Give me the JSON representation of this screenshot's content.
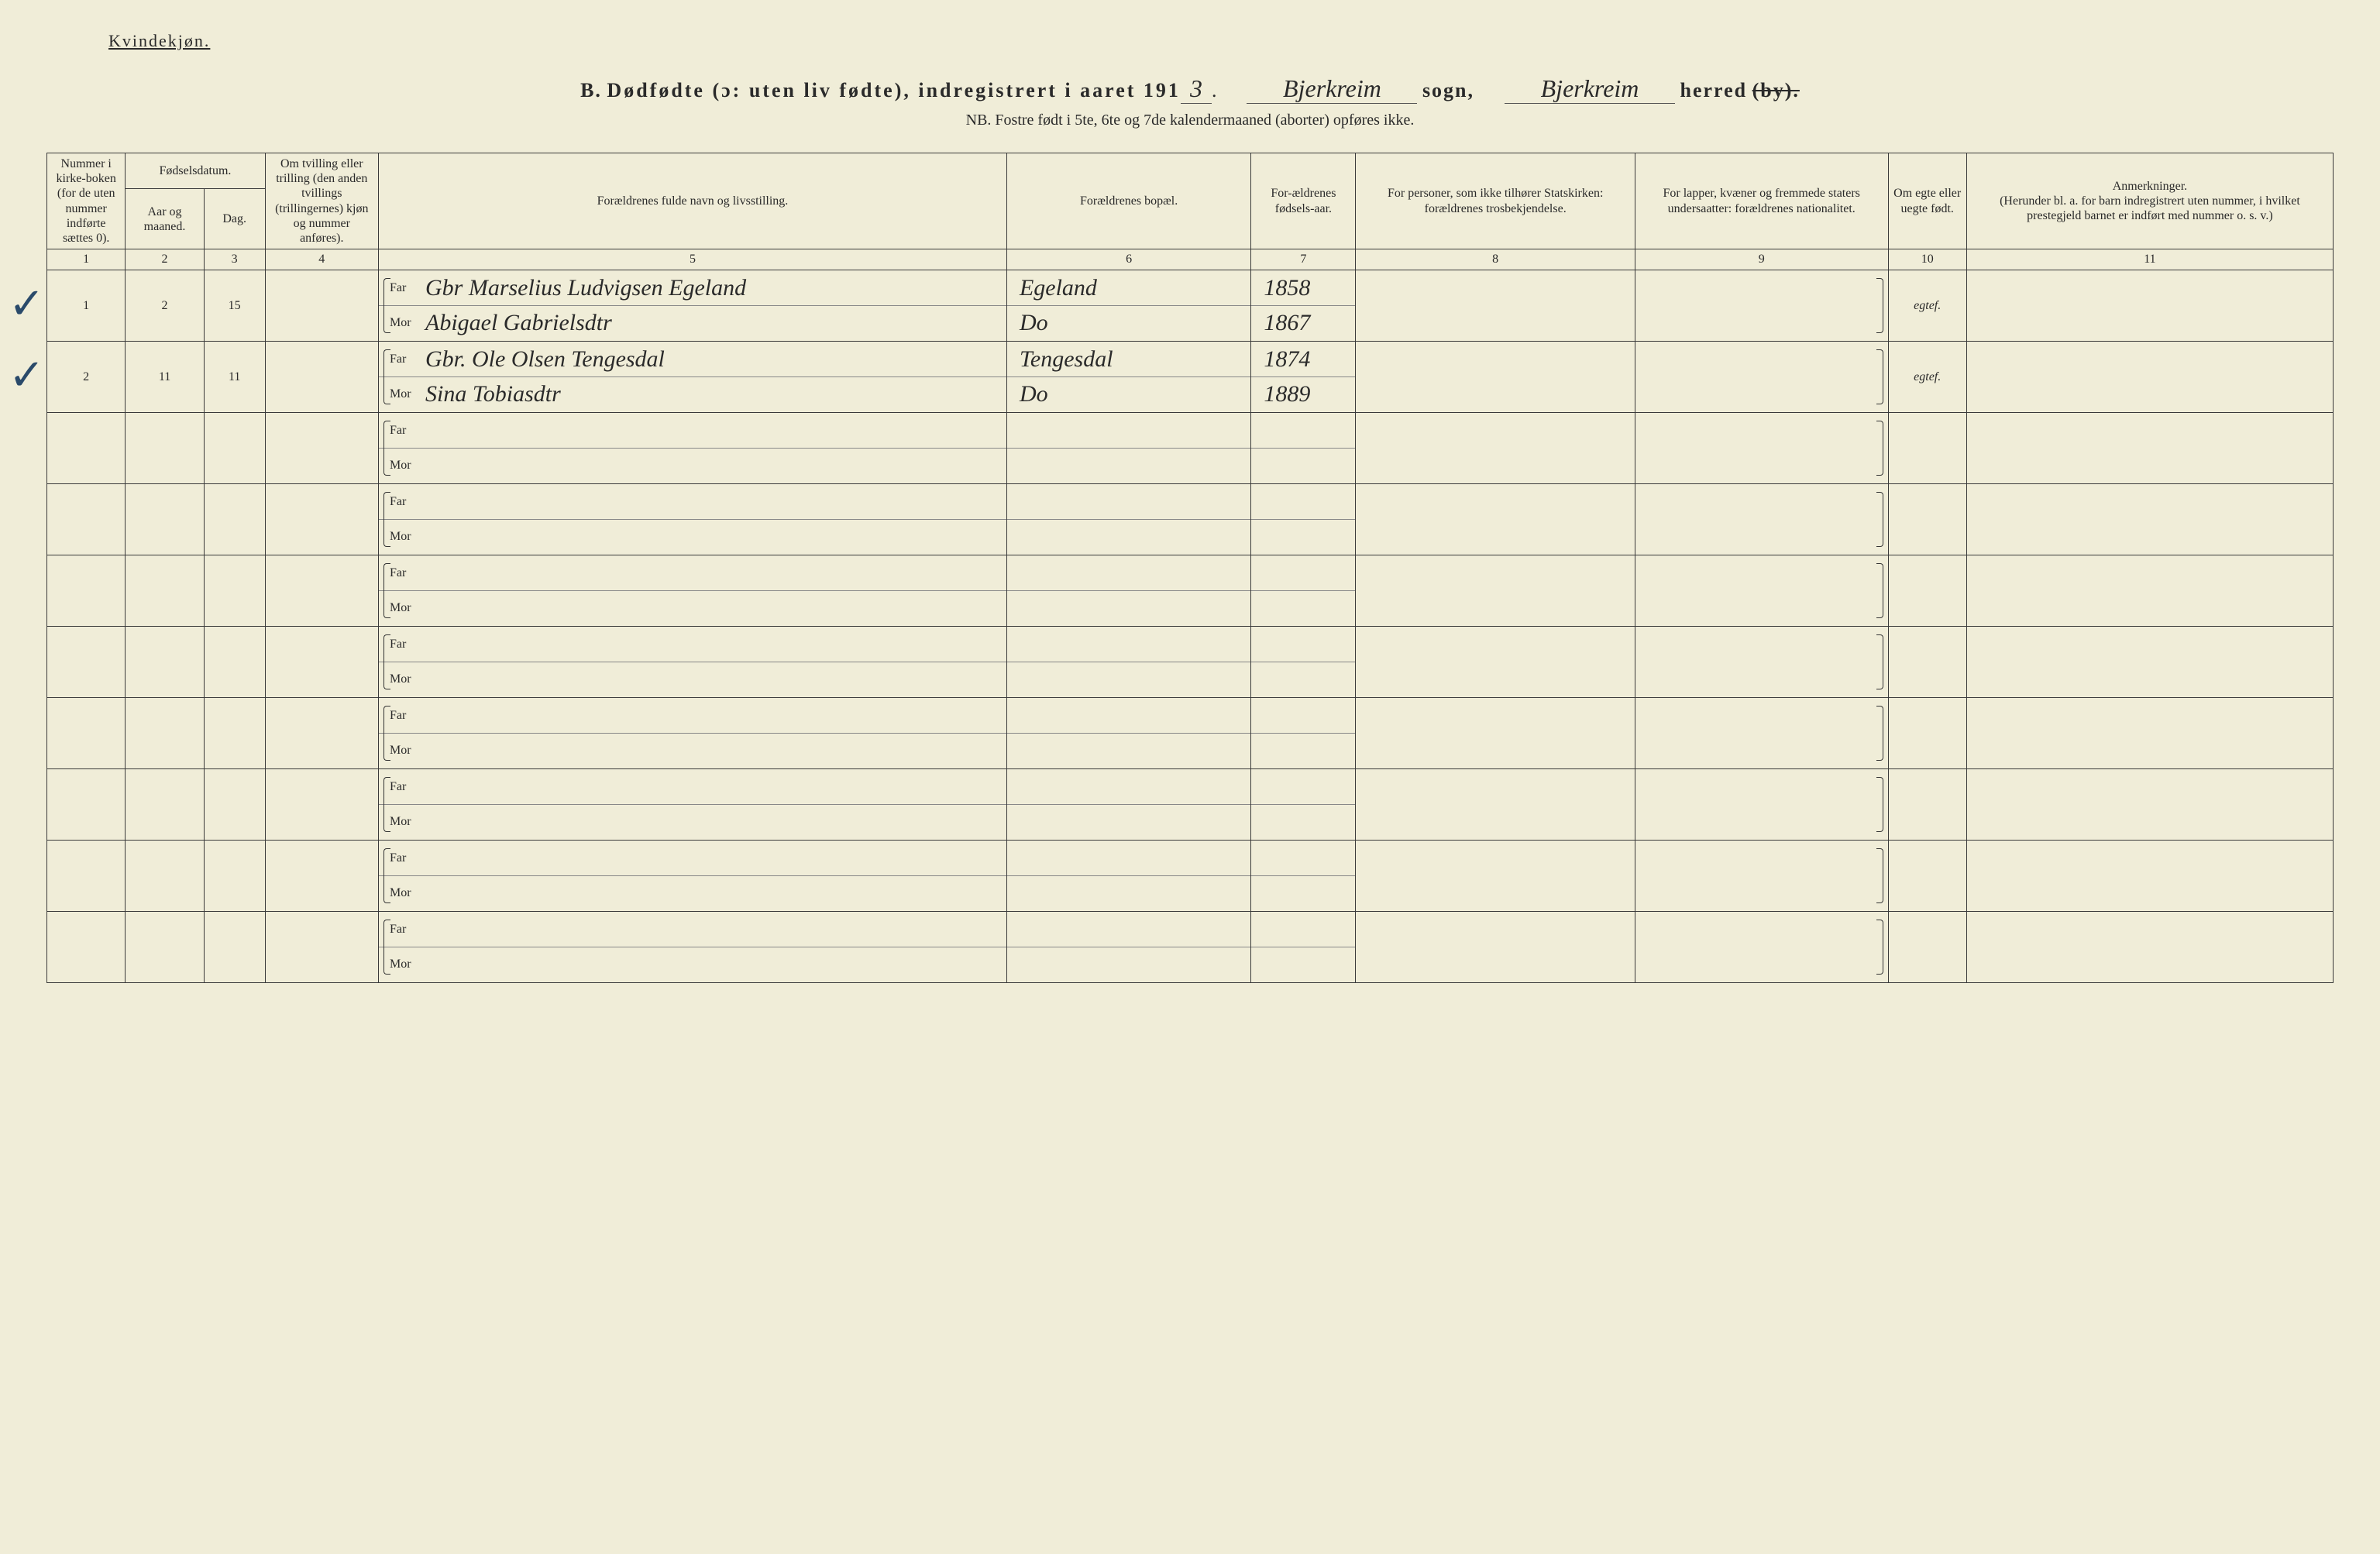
{
  "header": {
    "gender_label": "Kvindekjøn.",
    "title_prefix": "B.",
    "title_main": "Dødfødte (ɔ: uten liv fødte), indregistrert i aaret 191",
    "year_suffix": "3",
    "sogn_label": "sogn,",
    "sogn_value": "Bjerkreim",
    "herred_label": "herred",
    "herred_struck": "(by).",
    "herred_value": "Bjerkreim",
    "nb_line": "NB. Fostre født i 5te, 6te og 7de kalendermaaned (aborter) opføres ikke."
  },
  "columns": {
    "c1": "Nummer i kirke-boken (for de uten nummer indførte sættes 0).",
    "c2_group": "Fødselsdatum.",
    "c2a": "Aar og maaned.",
    "c2b": "Dag.",
    "c4": "Om tvilling eller trilling (den anden tvillings (trillingernes) kjøn og nummer anføres).",
    "c5": "Forældrenes fulde navn og livsstilling.",
    "c6": "Forældrenes bopæl.",
    "c7": "For-ældrenes fødsels-aar.",
    "c8": "For personer, som ikke tilhører Statskirken: forældrenes trosbekjendelse.",
    "c9": "For lapper, kvæner og fremmede staters undersaatter: forældrenes nationalitet.",
    "c10": "Om egte eller uegte født.",
    "c11_title": "Anmerkninger.",
    "c11_sub": "(Herunder bl. a. for barn indregistrert uten nummer, i hvilket prestegjeld barnet er indført med nummer o. s. v.)",
    "far": "Far",
    "mor": "Mor",
    "nums": [
      "1",
      "2",
      "3",
      "4",
      "5",
      "6",
      "7",
      "8",
      "9",
      "10",
      "11"
    ]
  },
  "rows": [
    {
      "checked": true,
      "num": "1",
      "month": "2",
      "day": "15",
      "twin": "",
      "far_name": "Gbr Marselius Ludvigsen Egeland",
      "mor_name": "Abigael Gabrielsdtr",
      "far_place": "Egeland",
      "mor_place": "Do",
      "far_year": "1858",
      "mor_year": "1867",
      "c8": "",
      "c9": "",
      "legit": "egtef.",
      "remarks": ""
    },
    {
      "checked": true,
      "num": "2",
      "month": "11",
      "day": "11",
      "twin": "",
      "far_name": "Gbr. Ole Olsen Tengesdal",
      "mor_name": "Sina Tobiasdtr",
      "far_place": "Tengesdal",
      "mor_place": "Do",
      "far_year": "1874",
      "mor_year": "1889",
      "c8": "",
      "c9": "",
      "legit": "egtef.",
      "remarks": ""
    },
    {
      "checked": false
    },
    {
      "checked": false
    },
    {
      "checked": false
    },
    {
      "checked": false
    },
    {
      "checked": false
    },
    {
      "checked": false
    },
    {
      "checked": false
    },
    {
      "checked": false
    }
  ],
  "style": {
    "background_color": "#f0edd8",
    "ink_color": "#2a2a2a",
    "check_color": "#2a4a6a",
    "handwriting_font": "Brush Script MT"
  }
}
